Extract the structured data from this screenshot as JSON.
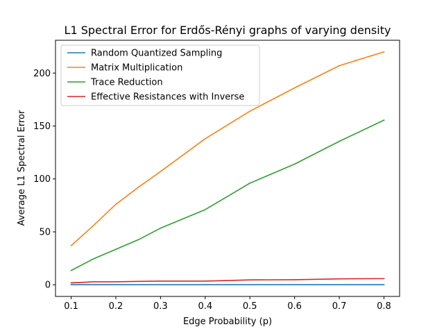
{
  "chart_data": {
    "type": "line",
    "title": "L1 Spectral Error for Erdős-Rényi graphs of varying density",
    "xlabel": "Edge Probability (p)",
    "ylabel": "Average L1 Spectral Error",
    "xlim": [
      0.065,
      0.835
    ],
    "ylim": [
      -11,
      231
    ],
    "xticks": [
      0.1,
      0.2,
      0.3,
      0.4,
      0.5,
      0.6,
      0.7,
      0.8
    ],
    "xtick_labels": [
      "0.1",
      "0.2",
      "0.3",
      "0.4",
      "0.5",
      "0.6",
      "0.7",
      "0.8"
    ],
    "yticks": [
      0,
      50,
      100,
      150,
      200
    ],
    "ytick_labels": [
      "0",
      "50",
      "100",
      "150",
      "200"
    ],
    "grid": false,
    "legend_position": "top-left",
    "x": [
      0.1,
      0.15,
      0.2,
      0.25,
      0.3,
      0.4,
      0.5,
      0.6,
      0.7,
      0.8
    ],
    "series": [
      {
        "name": "Random Quantized Sampling",
        "color": "#1f77b4",
        "values": [
          0.1,
          0.1,
          0.1,
          0.1,
          0.1,
          0.1,
          0.1,
          0.1,
          0.1,
          0.1
        ]
      },
      {
        "name": "Matrix Multiplication",
        "color": "#ff7f0e",
        "values": [
          37,
          56,
          76,
          92,
          107,
          138,
          164,
          186,
          207,
          220
        ]
      },
      {
        "name": "Trace Reduction",
        "color": "#2ca02c",
        "values": [
          13.5,
          24.5,
          33.5,
          42.5,
          53.5,
          71,
          96,
          114,
          135.5,
          155.5
        ]
      },
      {
        "name": "Effective Resistances with Inverse",
        "color": "#d62728",
        "values": [
          1.8,
          2.8,
          2.8,
          3.2,
          3.5,
          3.5,
          4.6,
          4.8,
          5.6,
          5.8
        ]
      }
    ]
  }
}
